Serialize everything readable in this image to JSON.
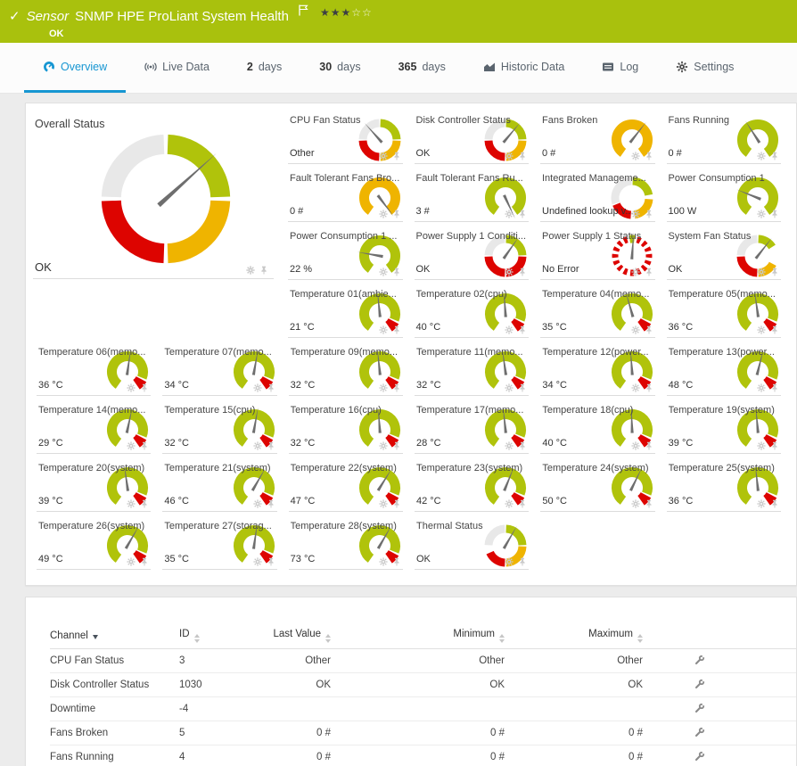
{
  "header": {
    "type_label": "Sensor",
    "title": "SNMP HPE ProLiant System Health",
    "status": "OK",
    "rating_filled": 3,
    "rating_total": 5,
    "check_glyph": "✓"
  },
  "tabs": [
    {
      "label": "Overview",
      "icon": "gauge-icon",
      "active": true
    },
    {
      "label": "Live Data",
      "icon": "live-data-icon"
    },
    {
      "num": "2",
      "label": "days"
    },
    {
      "num": "30",
      "label": "days"
    },
    {
      "num": "365",
      "label": "days"
    },
    {
      "label": "Historic Data",
      "icon": "historic-data-icon"
    },
    {
      "label": "Log",
      "icon": "log-icon"
    },
    {
      "label": "Settings",
      "icon": "gear-icon"
    }
  ],
  "colors": {
    "header_bg": "#a9c10d",
    "accent_blue": "#1696d2",
    "gauge_green": "#b0c30b",
    "gauge_yellow": "#efb400",
    "gauge_red": "#dd0400",
    "gauge_gray": "#e8e8e8",
    "needle": "#6e6e6e"
  },
  "panel_icons": [
    "gear-icon",
    "pin-icon"
  ],
  "overall": {
    "title": "Overall Status",
    "value": "OK",
    "gauge": {
      "kind": "seg",
      "needle": 48,
      "segs": [
        [
          "#b0c30b",
          2,
          88
        ],
        [
          "#efb400",
          92,
          178
        ],
        [
          "#dd0400",
          182,
          268
        ],
        [
          "#e8e8e8",
          272,
          358
        ]
      ]
    }
  },
  "minis_top": [
    {
      "title": "CPU Fan Status",
      "value": "Other",
      "gauge": {
        "kind": "seg",
        "needle": -42,
        "segs": [
          [
            "#e8e8e8",
            272,
            358
          ],
          [
            "#b0c30b",
            2,
            88
          ],
          [
            "#efb400",
            92,
            178
          ],
          [
            "#dd0400",
            182,
            268
          ]
        ]
      }
    },
    {
      "title": "Disk Controller Status",
      "value": "OK",
      "gauge": {
        "kind": "seg",
        "needle": 40,
        "segs": [
          [
            "#e8e8e8",
            272,
            358
          ],
          [
            "#b0c30b",
            2,
            88
          ],
          [
            "#efb400",
            92,
            178
          ],
          [
            "#dd0400",
            182,
            268
          ]
        ]
      }
    },
    {
      "title": "Fans Broken",
      "value": "0 #",
      "gauge": {
        "kind": "seg",
        "needle": 38,
        "thick": 11,
        "segs": [
          [
            "#efb400",
            -145,
            145
          ]
        ]
      }
    },
    {
      "title": "Fans Running",
      "value": "0 #",
      "gauge": {
        "kind": "seg",
        "needle": -33,
        "thick": 11,
        "segs": [
          [
            "#b0c30b",
            -145,
            145
          ]
        ]
      }
    },
    {
      "title": "Fault Tolerant Fans Bro...",
      "value": "0 #",
      "gauge": {
        "kind": "seg",
        "needle": 143,
        "thick": 11,
        "segs": [
          [
            "#efb400",
            -145,
            145
          ]
        ]
      }
    },
    {
      "title": "Fault Tolerant Fans Ru...",
      "value": "3 #",
      "gauge": {
        "kind": "seg",
        "needle": 155,
        "thick": 11,
        "segs": [
          [
            "#b0c30b",
            -145,
            145
          ]
        ]
      }
    },
    {
      "title": "Integrated Manageme...",
      "value": "Undefined lookup v...",
      "gauge": {
        "kind": "seg",
        "needle": null,
        "segs": [
          [
            "#e8e8e8",
            252,
            358
          ],
          [
            "#b0c30b",
            2,
            80
          ],
          [
            "#efb400",
            94,
            172
          ],
          [
            "#dd0400",
            184,
            248
          ]
        ]
      }
    },
    {
      "title": "Power Consumption 1",
      "value": "100 W",
      "gauge": {
        "kind": "seg",
        "needle": -68,
        "thick": 11,
        "segs": [
          [
            "#b0c30b",
            -145,
            145
          ]
        ]
      }
    },
    {
      "title": "Power Consumption 1 ...",
      "value": "22 %",
      "gauge": {
        "kind": "seg",
        "needle": -80,
        "thick": 11,
        "segs": [
          [
            "#b0c30b",
            -145,
            145
          ]
        ]
      }
    },
    {
      "title": "Power Supply 1 Conditi...",
      "value": "OK",
      "gauge": {
        "kind": "seg",
        "needle": 35,
        "segs": [
          [
            "#e8e8e8",
            272,
            358
          ],
          [
            "#b0c30b",
            2,
            88
          ],
          [
            "#dd0400",
            92,
            178
          ],
          [
            "#dd0400",
            182,
            268
          ]
        ]
      }
    },
    {
      "title": "Power Supply 1 Status",
      "value": "No Error",
      "gauge": {
        "kind": "dot",
        "needle": 4,
        "segs": [
          [
            "#b0c30b",
            -8,
            8
          ]
        ]
      }
    },
    {
      "title": "System Fan Status",
      "value": "OK",
      "gauge": {
        "kind": "seg",
        "needle": 38,
        "segs": [
          [
            "#e8e8e8",
            272,
            358
          ],
          [
            "#b0c30b",
            2,
            58
          ],
          [
            "#efb400",
            118,
            178
          ],
          [
            "#dd0400",
            182,
            268
          ]
        ]
      }
    },
    {
      "title": "Temperature 01(ambie...",
      "value": "21 °C",
      "gauge": {
        "kind": "seg",
        "needle": -6,
        "thick": 11,
        "segs": [
          [
            "#b0c30b",
            -145,
            112
          ],
          [
            "#dd0400",
            118,
            145,
            13
          ]
        ]
      }
    },
    {
      "title": "Temperature 02(cpu)",
      "value": "40 °C",
      "gauge": {
        "kind": "seg",
        "needle": -4,
        "thick": 11,
        "segs": [
          [
            "#b0c30b",
            -145,
            112
          ],
          [
            "#dd0400",
            118,
            145,
            13
          ]
        ]
      }
    },
    {
      "title": "Temperature 04(memo...",
      "value": "35 °C",
      "gauge": {
        "kind": "seg",
        "needle": -16,
        "thick": 11,
        "segs": [
          [
            "#b0c30b",
            -145,
            112
          ],
          [
            "#dd0400",
            118,
            145,
            13
          ]
        ]
      }
    },
    {
      "title": "Temperature 05(memo...",
      "value": "36 °C",
      "gauge": {
        "kind": "seg",
        "needle": -8,
        "thick": 11,
        "segs": [
          [
            "#b0c30b",
            -145,
            112
          ],
          [
            "#dd0400",
            118,
            145,
            13
          ]
        ]
      }
    }
  ],
  "minis_bottom": [
    {
      "title": "Temperature 06(memo...",
      "value": "36 °C",
      "gauge": {
        "kind": "seg",
        "needle": 8,
        "thick": 11,
        "segs": [
          [
            "#b0c30b",
            -145,
            112
          ],
          [
            "#dd0400",
            118,
            145,
            13
          ]
        ]
      }
    },
    {
      "title": "Temperature 07(memo...",
      "value": "34 °C",
      "gauge": {
        "kind": "seg",
        "needle": 10,
        "thick": 11,
        "segs": [
          [
            "#b0c30b",
            -145,
            112
          ],
          [
            "#dd0400",
            118,
            145,
            13
          ]
        ]
      }
    },
    {
      "title": "Temperature 09(memo...",
      "value": "32 °C",
      "gauge": {
        "kind": "seg",
        "needle": -6,
        "thick": 11,
        "segs": [
          [
            "#b0c30b",
            -145,
            112
          ],
          [
            "#dd0400",
            118,
            145,
            13
          ]
        ]
      }
    },
    {
      "title": "Temperature 11(memo...",
      "value": "32 °C",
      "gauge": {
        "kind": "seg",
        "needle": -8,
        "thick": 11,
        "segs": [
          [
            "#b0c30b",
            -145,
            112
          ],
          [
            "#dd0400",
            118,
            145,
            13
          ]
        ]
      }
    },
    {
      "title": "Temperature 12(power...",
      "value": "34 °C",
      "gauge": {
        "kind": "seg",
        "needle": -4,
        "thick": 11,
        "segs": [
          [
            "#b0c30b",
            -145,
            112
          ],
          [
            "#dd0400",
            118,
            145,
            13
          ]
        ]
      }
    },
    {
      "title": "Temperature 13(power...",
      "value": "48 °C",
      "gauge": {
        "kind": "seg",
        "needle": 14,
        "thick": 11,
        "segs": [
          [
            "#b0c30b",
            -145,
            112
          ],
          [
            "#dd0400",
            118,
            145,
            13
          ]
        ]
      }
    },
    {
      "title": "Temperature 14(memo...",
      "value": "29 °C",
      "gauge": {
        "kind": "seg",
        "needle": 12,
        "thick": 11,
        "segs": [
          [
            "#b0c30b",
            -145,
            112
          ],
          [
            "#dd0400",
            118,
            145,
            13
          ]
        ]
      }
    },
    {
      "title": "Temperature 15(cpu)",
      "value": "32 °C",
      "gauge": {
        "kind": "seg",
        "needle": 10,
        "thick": 11,
        "segs": [
          [
            "#b0c30b",
            -145,
            112
          ],
          [
            "#dd0400",
            118,
            145,
            13
          ]
        ]
      }
    },
    {
      "title": "Temperature 16(cpu)",
      "value": "32 °C",
      "gauge": {
        "kind": "seg",
        "needle": -4,
        "thick": 11,
        "segs": [
          [
            "#b0c30b",
            -145,
            112
          ],
          [
            "#dd0400",
            118,
            145,
            13
          ]
        ]
      }
    },
    {
      "title": "Temperature 17(memo...",
      "value": "28 °C",
      "gauge": {
        "kind": "seg",
        "needle": -6,
        "thick": 11,
        "segs": [
          [
            "#b0c30b",
            -145,
            112
          ],
          [
            "#dd0400",
            118,
            145,
            13
          ]
        ]
      }
    },
    {
      "title": "Temperature 18(cpu)",
      "value": "40 °C",
      "gauge": {
        "kind": "seg",
        "needle": -2,
        "thick": 11,
        "segs": [
          [
            "#b0c30b",
            -145,
            112
          ],
          [
            "#dd0400",
            118,
            145,
            13
          ]
        ]
      }
    },
    {
      "title": "Temperature 19(system)",
      "value": "39 °C",
      "gauge": {
        "kind": "seg",
        "needle": -5,
        "thick": 11,
        "segs": [
          [
            "#b0c30b",
            -145,
            112
          ],
          [
            "#dd0400",
            118,
            145,
            13
          ]
        ]
      }
    },
    {
      "title": "Temperature 20(system)",
      "value": "39 °C",
      "gauge": {
        "kind": "seg",
        "needle": -8,
        "thick": 11,
        "segs": [
          [
            "#b0c30b",
            -145,
            112
          ],
          [
            "#dd0400",
            118,
            145,
            13
          ]
        ]
      }
    },
    {
      "title": "Temperature 21(system)",
      "value": "46 °C",
      "gauge": {
        "kind": "seg",
        "needle": 30,
        "thick": 11,
        "segs": [
          [
            "#b0c30b",
            -145,
            112
          ],
          [
            "#dd0400",
            118,
            145,
            13
          ]
        ]
      }
    },
    {
      "title": "Temperature 22(system)",
      "value": "47 °C",
      "gauge": {
        "kind": "seg",
        "needle": 32,
        "thick": 11,
        "segs": [
          [
            "#b0c30b",
            -145,
            112
          ],
          [
            "#dd0400",
            118,
            145,
            13
          ]
        ]
      }
    },
    {
      "title": "Temperature 23(system)",
      "value": "42 °C",
      "gauge": {
        "kind": "seg",
        "needle": 22,
        "thick": 11,
        "segs": [
          [
            "#b0c30b",
            -145,
            112
          ],
          [
            "#dd0400",
            118,
            145,
            13
          ]
        ]
      }
    },
    {
      "title": "Temperature 24(system)",
      "value": "50 °C",
      "gauge": {
        "kind": "seg",
        "needle": 26,
        "thick": 11,
        "segs": [
          [
            "#b0c30b",
            -145,
            112
          ],
          [
            "#dd0400",
            118,
            145,
            13
          ]
        ]
      }
    },
    {
      "title": "Temperature 25(system)",
      "value": "36 °C",
      "gauge": {
        "kind": "seg",
        "needle": -6,
        "thick": 11,
        "segs": [
          [
            "#b0c30b",
            -145,
            112
          ],
          [
            "#dd0400",
            118,
            145,
            13
          ]
        ]
      }
    },
    {
      "title": "Temperature 26(system)",
      "value": "49 °C",
      "gauge": {
        "kind": "seg",
        "needle": 30,
        "thick": 11,
        "segs": [
          [
            "#b0c30b",
            -145,
            112
          ],
          [
            "#dd0400",
            118,
            145,
            13
          ]
        ]
      }
    },
    {
      "title": "Temperature 27(storag...",
      "value": "35 °C",
      "gauge": {
        "kind": "seg",
        "needle": 8,
        "thick": 11,
        "segs": [
          [
            "#b0c30b",
            -145,
            112
          ],
          [
            "#dd0400",
            118,
            145,
            13
          ]
        ]
      }
    },
    {
      "title": "Temperature 28(system)",
      "value": "73 °C",
      "gauge": {
        "kind": "seg",
        "needle": 30,
        "thick": 11,
        "segs": [
          [
            "#b0c30b",
            -145,
            112
          ],
          [
            "#dd0400",
            118,
            145,
            13
          ]
        ]
      }
    },
    {
      "title": "Thermal Status",
      "value": "OK",
      "gauge": {
        "kind": "seg",
        "needle": 30,
        "segs": [
          [
            "#e8e8e8",
            272,
            358
          ],
          [
            "#b0c30b",
            2,
            88
          ],
          [
            "#efb400",
            92,
            178
          ],
          [
            "#dd0400",
            182,
            246
          ]
        ]
      }
    }
  ],
  "table": {
    "columns": [
      {
        "label": "Channel",
        "sorted": "desc"
      },
      {
        "label": "ID"
      },
      {
        "label": "Last Value"
      },
      {
        "label": "Minimum"
      },
      {
        "label": "Maximum"
      }
    ],
    "rows": [
      {
        "channel": "CPU Fan Status",
        "id": "3",
        "last": "Other",
        "min": "Other",
        "max": "Other"
      },
      {
        "channel": "Disk Controller Status",
        "id": "1030",
        "last": "OK",
        "min": "OK",
        "max": "OK"
      },
      {
        "channel": "Downtime",
        "id": "-4",
        "last": "",
        "min": "",
        "max": ""
      },
      {
        "channel": "Fans Broken",
        "id": "5",
        "last": "0 #",
        "min": "0 #",
        "max": "0 #"
      },
      {
        "channel": "Fans Running",
        "id": "4",
        "last": "0 #",
        "min": "0 #",
        "max": "0 #"
      }
    ]
  }
}
